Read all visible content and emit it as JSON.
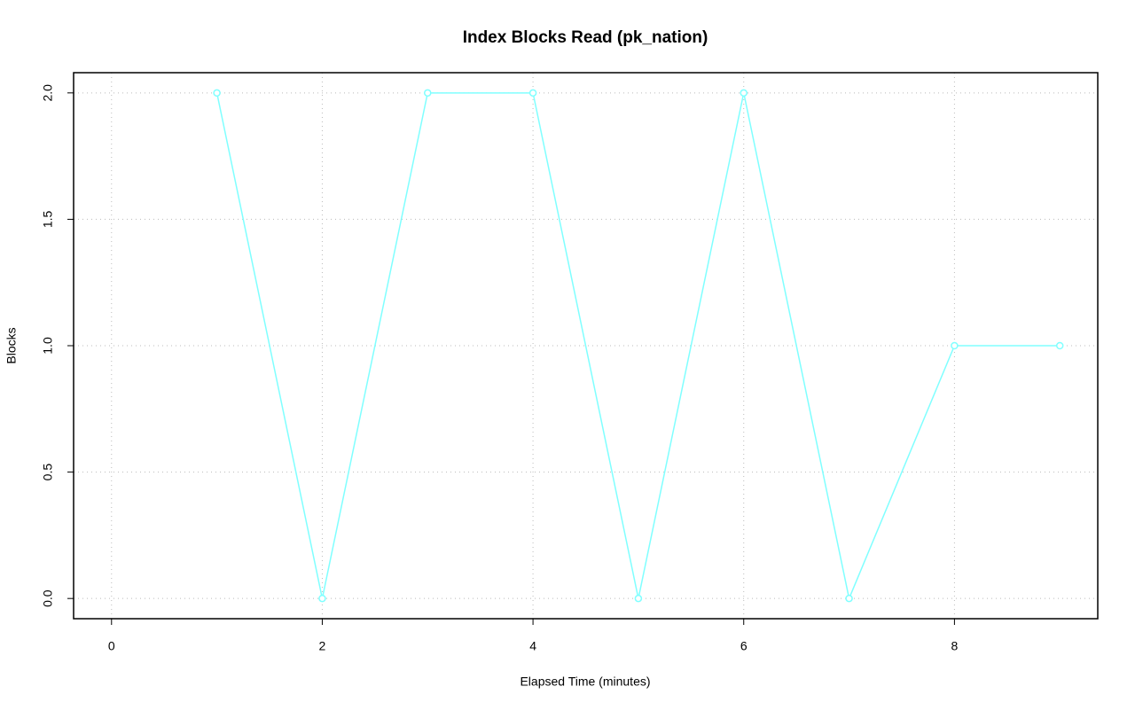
{
  "chart_data": {
    "type": "line",
    "title": "Index Blocks Read (pk_nation)",
    "x_label": "Elapsed Time (minutes)",
    "y_label": "Blocks",
    "x": [
      1,
      2,
      3,
      4,
      5,
      6,
      7,
      8,
      9
    ],
    "series": [
      {
        "name": "pk_nation",
        "color": "#80ffff",
        "values": [
          2,
          0,
          2,
          2,
          0,
          2,
          0,
          1,
          1
        ]
      }
    ],
    "xlim": [
      -0.36,
      9.36
    ],
    "xticks": [
      0,
      2,
      4,
      6,
      8
    ],
    "ylim": [
      -0.08,
      2.08
    ],
    "yticks": [
      {
        "value": 0,
        "label": "0.0"
      },
      {
        "value": 0.5,
        "label": "0.5"
      },
      {
        "value": 1,
        "label": "1.0"
      },
      {
        "value": 1.5,
        "label": "1.5"
      },
      {
        "value": 2,
        "label": "2.0"
      }
    ],
    "grid": true
  }
}
